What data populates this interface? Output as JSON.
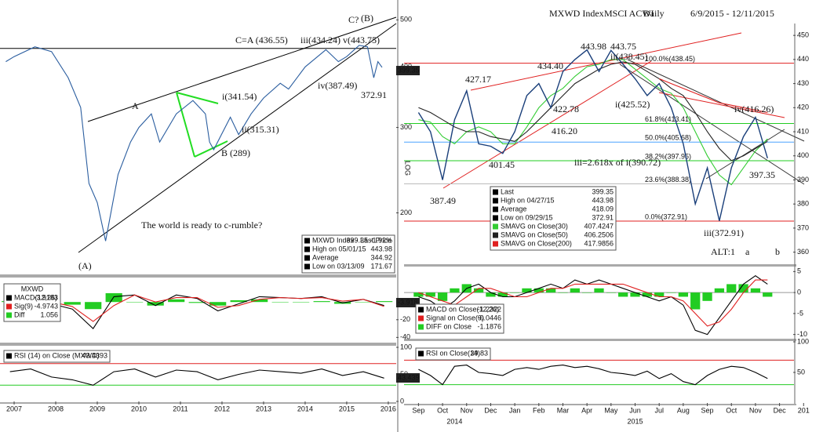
{
  "chart_data": [
    {
      "type": "line",
      "log_scale": true,
      "scale_label": "LOG",
      "x": [
        2006.8,
        2007.0,
        2007.5,
        2007.9,
        2008.3,
        2008.6,
        2008.8,
        2009.0,
        2009.2,
        2009.5,
        2009.8,
        2010.0,
        2010.3,
        2010.5,
        2010.9,
        2011.3,
        2011.6,
        2011.7,
        2011.8,
        2012.2,
        2012.4,
        2012.7,
        2013.0,
        2013.4,
        2013.6,
        2014.0,
        2014.3,
        2014.5,
        2014.8,
        2015.0,
        2015.3,
        2015.5,
        2015.65,
        2015.75,
        2015.85
      ],
      "series": [
        {
          "name": "MXWD Index - Last Price",
          "color": "#2a5d9f",
          "values": [
            410,
            420,
            440,
            430,
            380,
            330,
            230,
            210,
            175,
            240,
            280,
            300,
            320,
            280,
            320,
            341,
            320,
            280,
            270,
            315,
            290,
            320,
            345,
            370,
            360,
            400,
            420,
            434,
            410,
            420,
            443,
            440,
            380,
            410,
            399
          ]
        }
      ],
      "xlim": [
        2006.66,
        2016.19
      ],
      "ylim": [
        155,
        510
      ],
      "yticks": [
        200,
        300,
        400,
        500
      ],
      "levels": [
        {
          "value": 436.55,
          "color": "#000"
        }
      ],
      "annotations": [
        "C?",
        "(B)",
        "C=A (436.55)",
        "iii(434.24)",
        "v(443.75)",
        "A",
        "i(341.54)",
        "ii(315.31)",
        "iv(387.49)",
        "372.91",
        "B (289)",
        "The world is ready to c-rumble?",
        "(A)"
      ],
      "legend": [
        {
          "name": "MXWD Index - Last Price",
          "value": "399.35 -1.92%",
          "color": "#000"
        },
        {
          "name": "High on 05/01/15",
          "value": "443.98",
          "color": "#000"
        },
        {
          "name": "Average",
          "value": "344.92",
          "color": "#000"
        },
        {
          "name": "Low on 03/13/09",
          "value": "171.67",
          "color": "#000"
        }
      ],
      "tag": "399.35"
    },
    {
      "type": "line",
      "x": [
        2006.9,
        2007.4,
        2007.9,
        2008.4,
        2008.9,
        2009.4,
        2009.9,
        2010.4,
        2010.9,
        2011.4,
        2011.9,
        2012.4,
        2012.9,
        2013.4,
        2013.9,
        2014.4,
        2014.9,
        2015.4,
        2015.9
      ],
      "series": [
        {
          "name": "Diff",
          "color": "#22cc22",
          "style": "bar",
          "values": [
            1,
            0,
            -2,
            -3,
            -8,
            10,
            0,
            -4,
            3,
            -1,
            -4,
            2,
            3,
            0,
            0,
            1,
            -2,
            0,
            1
          ]
        },
        {
          "name": "MACD(12,26)",
          "color": "#000",
          "values": [
            3,
            4,
            -2,
            -8,
            -30,
            6,
            8,
            -4,
            8,
            4,
            -10,
            -2,
            6,
            5,
            4,
            6,
            -1,
            3,
            -4
          ]
        },
        {
          "name": "Sig(9)",
          "color": "#e02020",
          "values": [
            2,
            4,
            0,
            -5,
            -22,
            -4,
            8,
            0,
            5,
            5,
            -6,
            -4,
            3,
            5,
            4,
            5,
            1,
            3,
            -5
          ]
        }
      ],
      "xlim": [
        2006.66,
        2016.19
      ],
      "ylim": [
        -45,
        25
      ],
      "yticks": [
        -40,
        -20
      ],
      "legend_title": "MXWD",
      "legend": [
        {
          "name": "MACD(12,26)",
          "value": "-3.9183",
          "color": "#000"
        },
        {
          "name": "Sig(9)",
          "value": "-4.9743",
          "color": "#e02020"
        },
        {
          "name": "Diff",
          "value": "1.056",
          "color": "#22cc22"
        }
      ],
      "tag": "-3.918"
    },
    {
      "type": "line",
      "x": [
        2006.9,
        2007.4,
        2007.9,
        2008.4,
        2008.9,
        2009.4,
        2009.9,
        2010.4,
        2010.9,
        2011.4,
        2011.9,
        2012.4,
        2012.9,
        2013.4,
        2013.9,
        2014.4,
        2014.9,
        2015.4,
        2015.9
      ],
      "series": [
        {
          "name": "RSI (14) on Close (MXWD)",
          "color": "#000",
          "values": [
            55,
            60,
            45,
            40,
            30,
            55,
            60,
            45,
            58,
            55,
            40,
            50,
            58,
            55,
            52,
            60,
            48,
            55,
            43
          ]
        }
      ],
      "xlim": [
        2006.66,
        2016.19
      ],
      "ylim": [
        0,
        100
      ],
      "yticks": [
        0,
        50,
        100
      ],
      "levels": [
        {
          "value": 70,
          "color": "#e02020"
        },
        {
          "value": 30,
          "color": "#22cc22"
        }
      ],
      "legend": [
        {
          "name": "RSI (14) on Close (MXWD)",
          "value": "43.4393",
          "color": "#000"
        }
      ],
      "tag": "43.439",
      "xticks": [
        2007,
        2008,
        2009,
        2010,
        2011,
        2012,
        2013,
        2014,
        2015,
        2016
      ]
    },
    {
      "type": "line",
      "header": [
        "MXWD Index",
        "MSCI ACWI",
        "Daily",
        "6/9/2015 - 12/11/2015"
      ],
      "x": [
        0,
        0.5,
        1,
        1.5,
        2,
        2.5,
        3,
        3.5,
        4,
        4.5,
        5,
        5.5,
        6,
        6.5,
        7,
        7.5,
        8,
        8.5,
        9,
        9.5,
        10,
        10.5,
        11,
        11.5,
        12,
        12.5,
        13,
        13.5,
        14,
        14.5
      ],
      "series": [
        {
          "name": "SMAVG on Close(30)",
          "color": "#33cc33",
          "values": [
            415,
            414,
            408,
            405,
            410,
            412,
            410,
            405,
            405,
            412,
            420,
            425,
            428,
            433,
            437,
            438,
            440,
            440,
            436,
            432,
            428,
            426,
            420,
            410,
            400,
            392,
            388,
            395,
            402,
            407
          ]
        },
        {
          "name": "SMAVG on Close(50)",
          "color": "#222",
          "values": [
            420,
            418,
            415,
            412,
            410,
            410,
            408,
            407,
            406,
            410,
            415,
            420,
            425,
            430,
            433,
            436,
            438,
            439,
            438,
            435,
            432,
            428,
            425,
            418,
            410,
            403,
            398,
            400,
            403,
            406
          ]
        },
        {
          "name": "SMAVG on Close(200)",
          "color": "#e02020",
          "values": [
            null,
            null,
            null,
            null,
            null,
            null,
            null,
            null,
            null,
            null,
            null,
            null,
            null,
            null,
            null,
            null,
            null,
            null,
            null,
            null,
            432,
            430,
            428,
            426,
            424,
            422,
            421,
            420,
            419,
            418
          ]
        },
        {
          "name": "Last",
          "color": "#1a3f7a",
          "values": [
            418,
            410,
            390,
            415,
            427,
            405,
            404,
            401,
            410,
            425,
            430,
            420,
            435,
            440,
            444,
            435,
            443.75,
            438,
            432,
            425,
            430,
            420,
            405,
            380,
            395,
            373,
            395,
            408,
            416,
            399
          ]
        }
      ],
      "xlim": [
        -0.6,
        15.6
      ],
      "ylim": [
        355,
        452
      ],
      "yticks": [
        360,
        370,
        380,
        390,
        400,
        410,
        420,
        430,
        440,
        450
      ],
      "levels": [
        {
          "value": 438.45,
          "color": "#e02020",
          "label": "100.0%(438.45)"
        },
        {
          "value": 413.41,
          "color": "#22cc22",
          "label": "61.8%(413.41)"
        },
        {
          "value": 405.68,
          "color": "#4aa3ff",
          "label": "50.0%(405.68)"
        },
        {
          "value": 397.95,
          "color": "#22cc22",
          "label": "38.2%(397.95)"
        },
        {
          "value": 388.38,
          "color": "#bbb",
          "label": "23.6%(388.38)"
        },
        {
          "value": 372.91,
          "color": "#e02020",
          "label": "0.0%(372.91)"
        }
      ],
      "annotations": [
        "443.98",
        "443.75",
        "427.17",
        "434.40",
        "422.78",
        "416.20",
        "401.45",
        "387.49",
        "ii(438.45)",
        "i(425.52)",
        "iv(416.26)",
        "iii=2.618x of i(390.72)",
        "397.35",
        "iii(372.91)",
        "ALT:1",
        "a",
        "b"
      ],
      "legend": [
        {
          "name": "Last",
          "value": "399.35",
          "color": "#000"
        },
        {
          "name": "High on 04/27/15",
          "value": "443.98",
          "color": "#000"
        },
        {
          "name": "Average",
          "value": "418.09",
          "color": "#000"
        },
        {
          "name": "Low on 09/29/15",
          "value": "372.91",
          "color": "#000"
        },
        {
          "name": "SMAVG on Close(30)",
          "value": "407.4247",
          "color": "#33cc33"
        },
        {
          "name": "SMAVG on Close(50)",
          "value": "406.2506",
          "color": "#222"
        },
        {
          "name": "SMAVG on Close(200)",
          "value": "417.9856",
          "color": "#e02020"
        }
      ]
    },
    {
      "type": "line",
      "x": [
        0,
        0.5,
        1,
        1.5,
        2,
        2.5,
        3,
        3.5,
        4,
        4.5,
        5,
        5.5,
        6,
        6.5,
        7,
        7.5,
        8,
        8.5,
        9,
        9.5,
        10,
        10.5,
        11,
        11.5,
        12,
        12.5,
        13,
        13.5,
        14,
        14.5
      ],
      "series": [
        {
          "name": "DIFF on Close",
          "color": "#22cc22",
          "style": "bar",
          "values": [
            -1,
            -1,
            -2,
            1,
            2,
            1,
            -1,
            -1,
            0,
            1,
            1,
            1,
            0,
            1,
            0,
            1,
            0,
            -1,
            -1,
            -1,
            -1,
            0,
            -1,
            -4,
            -2,
            1,
            2,
            2,
            1,
            -1
          ]
        },
        {
          "name": "MACD on Close(12,26)",
          "color": "#000",
          "values": [
            -1,
            -2,
            -4,
            -2,
            1,
            2,
            0,
            -1,
            -1,
            0,
            1,
            2,
            1,
            3,
            2,
            3,
            2,
            1,
            0,
            -1,
            -2,
            -1,
            -3,
            -9,
            -10,
            -6,
            -2,
            2,
            4,
            2
          ]
        },
        {
          "name": "Signal on Close(9)",
          "color": "#e02020",
          "values": [
            0,
            -1,
            -2,
            -3,
            -1,
            1,
            1,
            0,
            -1,
            -1,
            0,
            1,
            1,
            2,
            2,
            2,
            2,
            2,
            1,
            0,
            -1,
            -1,
            -2,
            -5,
            -8,
            -7,
            -4,
            0,
            3,
            3
          ]
        }
      ],
      "xlim": [
        -0.6,
        15.6
      ],
      "ylim": [
        -11,
        6
      ],
      "yticks": [
        -10,
        -5,
        0,
        5
      ],
      "levels": [
        {
          "value": 0,
          "color": "#999"
        }
      ],
      "legend": [
        {
          "name": "MACD on Close(12,26)",
          "value": "-1.2322",
          "color": "#000"
        },
        {
          "name": "Signal on Close(9)",
          "value": "-0.0446",
          "color": "#e02020"
        },
        {
          "name": "DIFF on Close",
          "value": "-1.1876",
          "color": "#22cc22"
        }
      ]
    },
    {
      "type": "line",
      "x": [
        0,
        0.5,
        1,
        1.5,
        2,
        2.5,
        3,
        3.5,
        4,
        4.5,
        5,
        5.5,
        6,
        6.5,
        7,
        7.5,
        8,
        8.5,
        9,
        9.5,
        10,
        10.5,
        11,
        11.5,
        12,
        12.5,
        13,
        13.5,
        14,
        14.5
      ],
      "series": [
        {
          "name": "RSI on Close(14)",
          "color": "#000",
          "values": [
            55,
            45,
            30,
            60,
            62,
            50,
            48,
            45,
            55,
            58,
            55,
            60,
            62,
            58,
            60,
            56,
            50,
            48,
            45,
            52,
            40,
            48,
            35,
            30,
            45,
            55,
            60,
            58,
            50,
            40
          ]
        }
      ],
      "xlim": [
        -0.6,
        15.6
      ],
      "ylim": [
        0,
        100
      ],
      "yticks": [
        50,
        100
      ],
      "levels": [
        {
          "value": 70,
          "color": "#e02020"
        },
        {
          "value": 30,
          "color": "#22cc22"
        }
      ],
      "legend": [
        {
          "name": "RSI on Close(14)",
          "value": "39.83",
          "color": "#000"
        }
      ],
      "xticks": [
        {
          "value": 0,
          "label": "Sep"
        },
        {
          "value": 1,
          "label": "Oct"
        },
        {
          "value": 2,
          "label": "Nov"
        },
        {
          "value": 3,
          "label": "Dec"
        },
        {
          "value": 4,
          "label": "Jan"
        },
        {
          "value": 5,
          "label": "Feb"
        },
        {
          "value": 6,
          "label": "Mar"
        },
        {
          "value": 7,
          "label": "Apr"
        },
        {
          "value": 8,
          "label": "May"
        },
        {
          "value": 9,
          "label": "Jun"
        },
        {
          "value": 10,
          "label": "Jul"
        },
        {
          "value": 11,
          "label": "Aug"
        },
        {
          "value": 12,
          "label": "Sep"
        },
        {
          "value": 13,
          "label": "Oct"
        },
        {
          "value": 14,
          "label": "Nov"
        },
        {
          "value": 15,
          "label": "Dec"
        },
        {
          "value": 16,
          "label": "201"
        }
      ],
      "xgroups": [
        {
          "value": 1.5,
          "label": "2014"
        },
        {
          "value": 9,
          "label": "2015"
        }
      ]
    }
  ]
}
